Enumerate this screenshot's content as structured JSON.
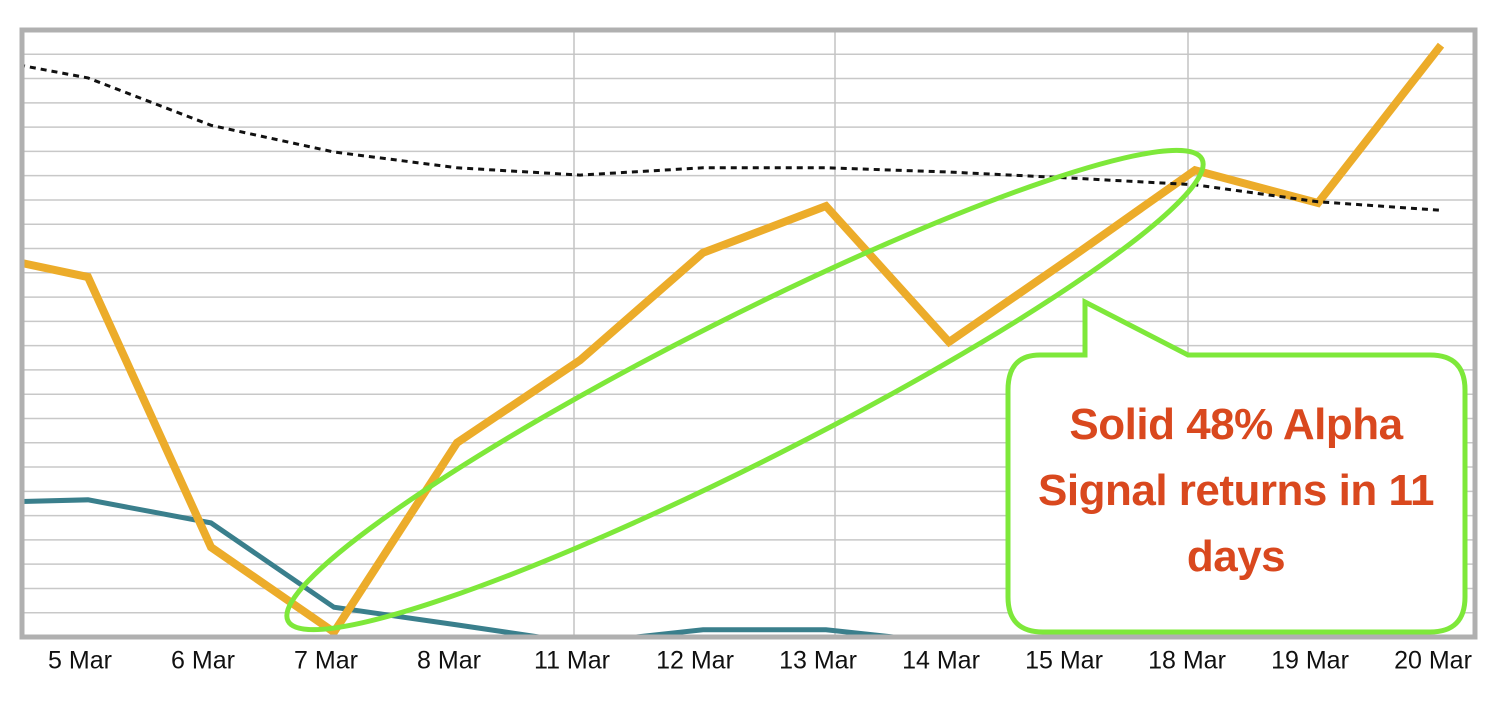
{
  "chart_data": {
    "type": "line",
    "categories": [
      null,
      "5 Mar",
      "6 Mar",
      "7 Mar",
      "8 Mar",
      "11 Mar",
      "12 Mar",
      "13 Mar",
      "14 Mar",
      "15 Mar",
      "18 Mar",
      "19 Mar",
      "20 Mar"
    ],
    "series": [
      {
        "color": "#ecac2a",
        "style": "solid",
        "width": 8,
        "values": [
          63.6,
          59.3,
          14.8,
          0.8,
          32.0,
          45.6,
          63.3,
          71.0,
          48.6,
          62.6,
          76.9,
          71.5,
          97.5
        ]
      },
      {
        "color": "#3a7f8c",
        "style": "solid",
        "width": 5,
        "values": [
          22.1,
          22.6,
          18.8,
          4.9,
          2.0,
          -1.0,
          1.2,
          1.2,
          -1.0,
          -2.0,
          -2.0,
          -2.0,
          -2.0
        ]
      },
      {
        "color": "#111111",
        "style": "dotted",
        "width": 3,
        "values": [
          95.9,
          92.1,
          84.3,
          79.9,
          77.3,
          76.1,
          77.3,
          77.3,
          76.6,
          75.6,
          74.5,
          71.7,
          70.3
        ]
      }
    ],
    "ylim": [
      0,
      100
    ],
    "yticks": [
      0,
      4,
      8,
      12,
      16,
      20,
      24,
      28,
      32,
      36,
      40,
      44,
      48,
      52,
      56,
      60,
      64,
      68,
      72,
      76,
      80,
      84,
      88,
      92,
      96,
      100
    ],
    "grid": true,
    "annotation": "Solid 48% Alpha Signal returns in 11 days"
  }
}
